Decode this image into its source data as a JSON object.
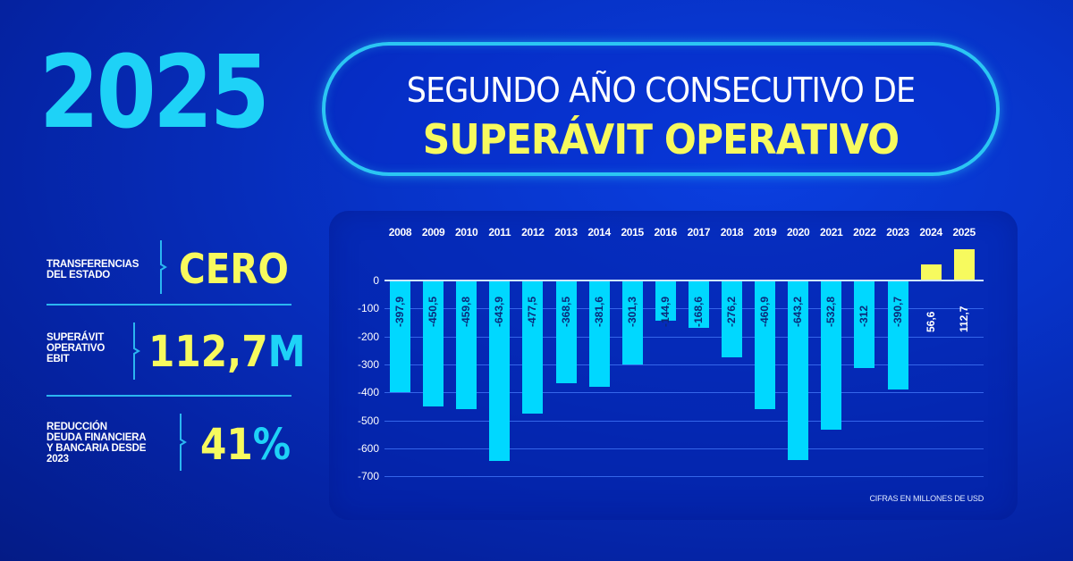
{
  "header": {
    "year": "2025",
    "headline_line1": "SEGUNDO AÑO CONSECUTIVO DE",
    "headline_line2": "SUPERÁVIT OPERATIVO"
  },
  "stats": [
    {
      "label": "TRANSFERENCIAS\nDEL ESTADO",
      "value": "CERO",
      "value_accent": ""
    },
    {
      "label": "SUPERÁVIT\nOPERATIVO\nEBIT",
      "value": "112,7",
      "value_accent": "M"
    },
    {
      "label": "REDUCCIÓN\nDEUDA FINANCIERA\nY BANCARIA DESDE\n2023",
      "value": "41",
      "value_accent": "%"
    }
  ],
  "colors": {
    "background": "#0733c8",
    "accent_cyan": "#1ed2f7",
    "accent_yellow": "#f7fa5e",
    "bar_negative": "#00d8ff",
    "bar_positive": "#f7fa5e"
  },
  "chart_data": {
    "type": "bar",
    "title": "",
    "xlabel": "",
    "ylabel": "",
    "categories": [
      "2008",
      "2009",
      "2010",
      "2011",
      "2012",
      "2013",
      "2014",
      "2015",
      "2016",
      "2017",
      "2018",
      "2019",
      "2020",
      "2021",
      "2022",
      "2023",
      "2024",
      "2025"
    ],
    "values": [
      -397.9,
      -450.5,
      -459.8,
      -643.9,
      -477.5,
      -368.5,
      -381.6,
      -301.3,
      -144.9,
      -168.6,
      -276.2,
      -460.9,
      -643.2,
      -532.8,
      -312,
      -390.7,
      56.6,
      112.7
    ],
    "value_labels": [
      "-397,9",
      "-450,5",
      "-459,8",
      "-643,9",
      "-477,5",
      "-368,5",
      "-381,6",
      "-301,3",
      "-144,9",
      "-168,6",
      "-276,2",
      "-460,9",
      "-643,2",
      "-532,8",
      "-312",
      "-390,7",
      "56,6",
      "112,7"
    ],
    "y_ticks": [
      "0",
      "-100",
      "-200",
      "-300",
      "-400",
      "-500",
      "-600",
      "-700"
    ],
    "ylim": [
      -700,
      120
    ],
    "grid": true,
    "x_labels_position": "top",
    "annotation": "CIFRAS EN MILLONES DE USD",
    "legend": null
  }
}
